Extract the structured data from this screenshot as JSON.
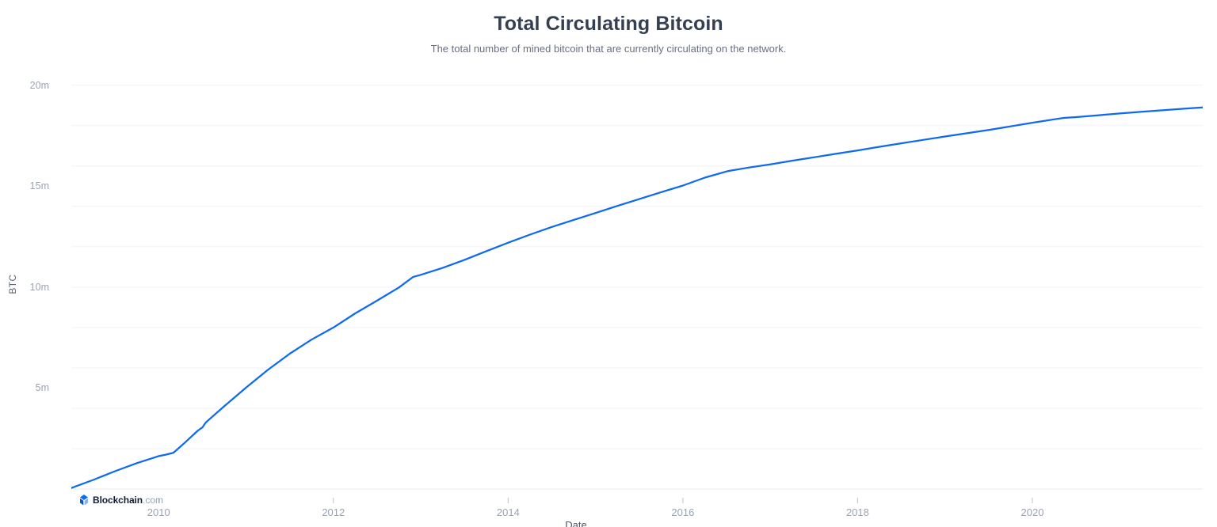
{
  "header": {
    "title": "Total Circulating Bitcoin",
    "subtitle": "The total number of mined bitcoin that are currently circulating on the network."
  },
  "watermark": {
    "brand_bold": "Blockchain",
    "brand_suffix": ".com",
    "icon": "blockchain-cube-logo",
    "icon_colors": {
      "top": "#0c6cf2",
      "left": "#1656b9",
      "right": "#85b5f8"
    }
  },
  "chart_data": {
    "type": "line",
    "title": "Total Circulating Bitcoin",
    "subtitle": "The total number of mined bitcoin that are currently circulating on the network.",
    "xlabel": "Date",
    "ylabel": "BTC",
    "legend": "none",
    "grid": "horizontal",
    "x_range": [
      2009.0,
      2021.95
    ],
    "y_range": [
      0,
      20.3
    ],
    "y_unit": "millions of BTC",
    "x_ticks": [
      {
        "year": 2010,
        "label": "2010"
      },
      {
        "year": 2012,
        "label": "2012"
      },
      {
        "year": 2014,
        "label": "2014"
      },
      {
        "year": 2016,
        "label": "2016"
      },
      {
        "year": 2018,
        "label": "2018"
      },
      {
        "year": 2020,
        "label": "2020"
      }
    ],
    "y_ticks": [
      {
        "value": 5,
        "label": "5m"
      },
      {
        "value": 10,
        "label": "10m"
      },
      {
        "value": 15,
        "label": "15m"
      },
      {
        "value": 20,
        "label": "20m"
      }
    ],
    "gridline_values": [
      2,
      4,
      6,
      8,
      10,
      12,
      14,
      16,
      18,
      20
    ],
    "line_color": "#0e6af0",
    "grid_color": "#f1f3f7",
    "axis_line_color": "#e4e8ef",
    "tick_color": "#b9c0cd",
    "series": [
      {
        "name": "Total Circulating Bitcoin",
        "x": [
          2009.0,
          2009.25,
          2009.5,
          2009.75,
          2010.0,
          2010.08,
          2010.17,
          2010.3,
          2010.45,
          2010.5,
          2010.54,
          2010.75,
          2011.0,
          2011.25,
          2011.5,
          2011.75,
          2012.0,
          2012.25,
          2012.5,
          2012.75,
          2012.91,
          2013.0,
          2013.25,
          2013.5,
          2013.75,
          2014.0,
          2014.25,
          2014.5,
          2014.75,
          2015.0,
          2015.25,
          2015.5,
          2015.75,
          2016.0,
          2016.25,
          2016.52,
          2016.75,
          2017.0,
          2017.25,
          2017.5,
          2017.75,
          2018.0,
          2018.25,
          2018.5,
          2018.75,
          2019.0,
          2019.25,
          2019.5,
          2019.75,
          2020.0,
          2020.25,
          2020.36,
          2020.5,
          2020.75,
          2021.0,
          2021.25,
          2021.5,
          2021.75,
          2021.95
        ],
        "y_millions": [
          0.05,
          0.45,
          0.88,
          1.28,
          1.63,
          1.7,
          1.8,
          2.3,
          2.9,
          3.05,
          3.3,
          4.1,
          5.02,
          5.9,
          6.7,
          7.4,
          8.0,
          8.7,
          9.33,
          9.98,
          10.5,
          10.61,
          10.95,
          11.35,
          11.78,
          12.2,
          12.6,
          12.98,
          13.33,
          13.67,
          14.02,
          14.36,
          14.7,
          15.03,
          15.42,
          15.75,
          15.92,
          16.08,
          16.26,
          16.43,
          16.6,
          16.77,
          16.95,
          17.12,
          17.29,
          17.46,
          17.62,
          17.78,
          17.96,
          18.14,
          18.31,
          18.38,
          18.42,
          18.51,
          18.6,
          18.68,
          18.76,
          18.84,
          18.9
        ]
      }
    ]
  }
}
